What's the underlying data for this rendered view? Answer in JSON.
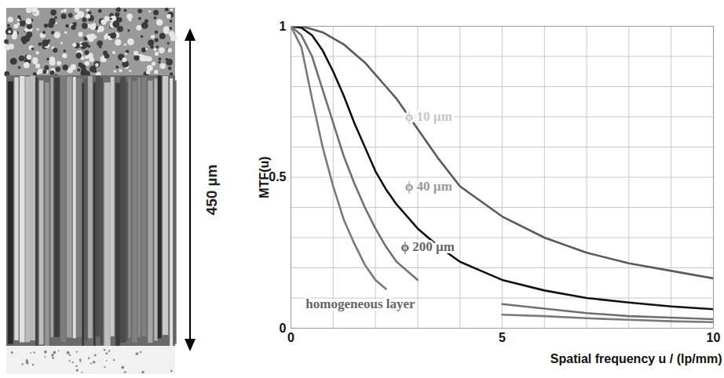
{
  "chart_data": {
    "type": "line",
    "xlabel": "Spatial frequency u / (lp/mm)",
    "ylabel": "MTF(u)",
    "x": [
      0,
      0.25,
      0.5,
      0.75,
      1,
      1.25,
      1.5,
      1.75,
      2,
      2.25,
      2.5,
      3,
      3.5,
      4,
      4.5,
      5,
      6,
      7,
      8,
      9,
      10
    ],
    "series": [
      {
        "name": "ϕ 10 µm",
        "color": "#5a5a5a",
        "values": [
          1,
          1,
          0.99,
          0.98,
          0.96,
          0.94,
          0.91,
          0.88,
          0.84,
          0.8,
          0.76,
          0.66,
          0.56,
          0.47,
          0.42,
          0.37,
          0.3,
          0.25,
          0.215,
          0.19,
          0.165
        ]
      },
      {
        "name": "ϕ 40 µm",
        "color": "#111111",
        "values": [
          1,
          0.995,
          0.97,
          0.92,
          0.85,
          0.77,
          0.68,
          0.6,
          0.52,
          0.46,
          0.41,
          0.33,
          0.27,
          0.22,
          0.19,
          0.16,
          0.125,
          0.1,
          0.085,
          0.072,
          0.063
        ]
      },
      {
        "name": "ϕ 200 µm",
        "color": "#707070",
        "values": [
          1,
          0.97,
          0.9,
          0.79,
          0.68,
          0.57,
          0.48,
          0.4,
          0.33,
          0.27,
          0.22,
          0.16,
          null,
          null,
          null,
          0.08,
          0.065,
          0.05,
          0.04,
          0.035,
          0.03
        ]
      },
      {
        "name": "homogeneous layer",
        "color": "#7a7a7a",
        "values": [
          1,
          0.93,
          0.76,
          0.6,
          0.47,
          0.36,
          0.28,
          0.21,
          0.16,
          0.13,
          null,
          null,
          null,
          null,
          null,
          0.045,
          0.04,
          0.033,
          0.028,
          0.023,
          0.02
        ]
      }
    ],
    "xlim": [
      0,
      10
    ],
    "xticks": [
      0,
      5,
      10
    ],
    "ylim": [
      0,
      1
    ],
    "yticks": [
      0,
      0.5,
      1
    ],
    "grid": true,
    "annotations": [
      {
        "text": "ϕ 10 µm",
        "x": 2.7,
        "y": 0.7,
        "color": "#c4c4c4"
      },
      {
        "text": "ϕ 40 µm",
        "x": 2.7,
        "y": 0.47,
        "color": "#9a9a9a"
      },
      {
        "text": "ϕ 200 µm",
        "x": 2.6,
        "y": 0.27,
        "color": "#666666"
      },
      {
        "text": "homogeneous layer",
        "x": 0.35,
        "y": 0.08,
        "color": "#666666"
      }
    ]
  },
  "micrograph": {
    "scale_label": "450 µm"
  }
}
